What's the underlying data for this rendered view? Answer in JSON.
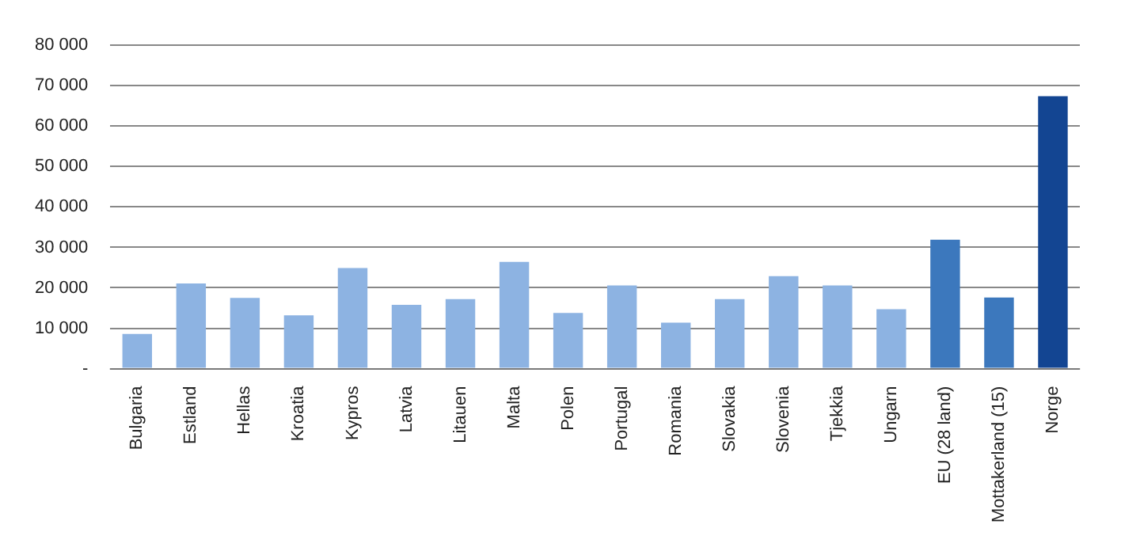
{
  "chart_data": {
    "type": "bar",
    "categories": [
      "Bulgaria",
      "Estland",
      "Hellas",
      "Kroatia",
      "Kypros",
      "Latvia",
      "Litauen",
      "Malta",
      "Polen",
      "Portugal",
      "Romania",
      "Slovakia",
      "Slovenia",
      "Tjekkia",
      "Ungarn",
      "EU (28 land)",
      "Mottakerland (15)",
      "Norge"
    ],
    "values": [
      8600,
      21100,
      17500,
      13200,
      24900,
      15800,
      17200,
      26400,
      13800,
      20600,
      11400,
      17200,
      22900,
      20600,
      14700,
      31900,
      17600,
      67400
    ],
    "colors": [
      "#8db3e2",
      "#8db3e2",
      "#8db3e2",
      "#8db3e2",
      "#8db3e2",
      "#8db3e2",
      "#8db3e2",
      "#8db3e2",
      "#8db3e2",
      "#8db3e2",
      "#8db3e2",
      "#8db3e2",
      "#8db3e2",
      "#8db3e2",
      "#8db3e2",
      "#3c78bd",
      "#3c78bd",
      "#134592"
    ],
    "ylim": [
      0,
      80000
    ],
    "yticks": [
      {
        "value": 0,
        "label": "-"
      },
      {
        "value": 10000,
        "label": "10 000"
      },
      {
        "value": 20000,
        "label": "20 000"
      },
      {
        "value": 30000,
        "label": "30 000"
      },
      {
        "value": 40000,
        "label": "40 000"
      },
      {
        "value": 50000,
        "label": "50 000"
      },
      {
        "value": 60000,
        "label": "60 000"
      },
      {
        "value": 70000,
        "label": "70 000"
      },
      {
        "value": 80000,
        "label": "80 000"
      }
    ],
    "grid": "y",
    "legend": false
  }
}
